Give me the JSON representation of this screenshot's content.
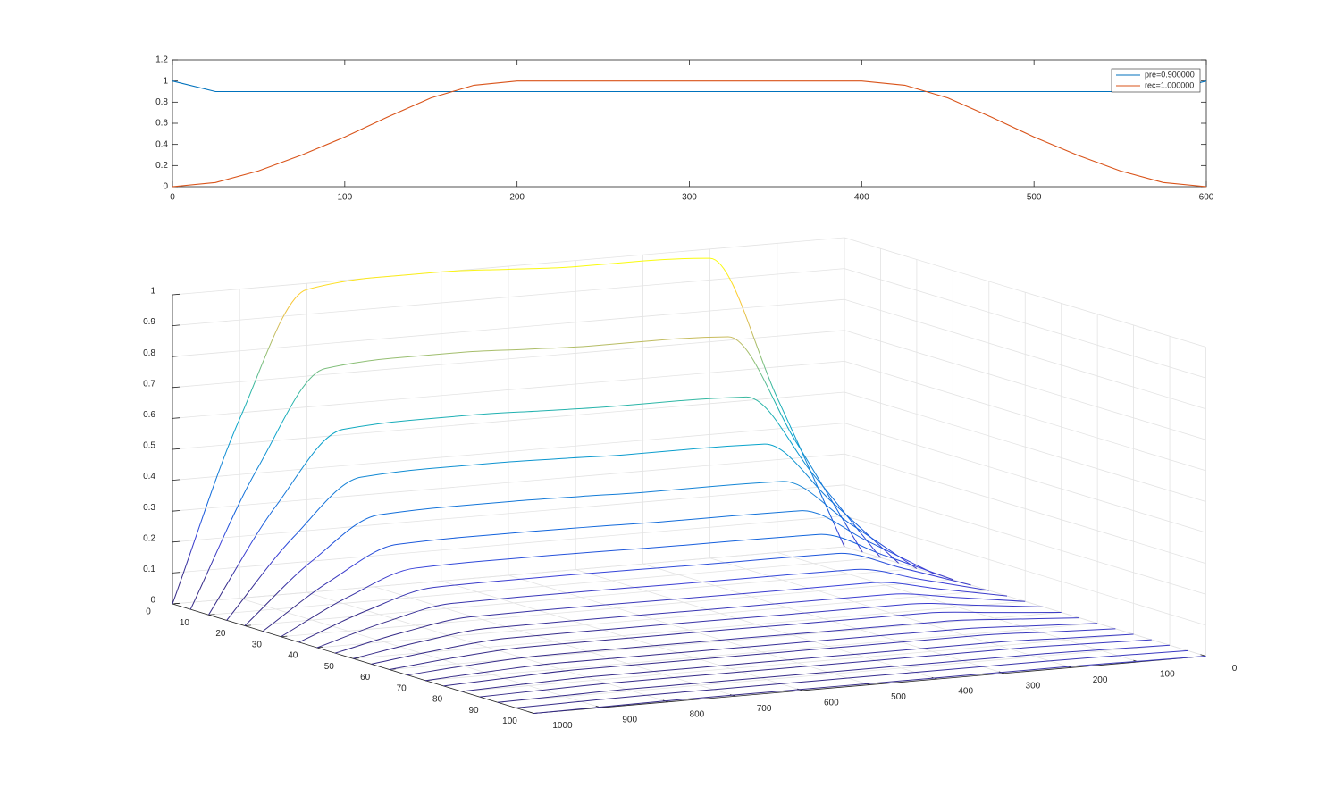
{
  "chart_data": [
    {
      "type": "line",
      "x": [
        0,
        25,
        50,
        75,
        100,
        125,
        150,
        175,
        200,
        225,
        250,
        275,
        300,
        325,
        350,
        375,
        400,
        425,
        450,
        475,
        500,
        525,
        550,
        575,
        600
      ],
      "series": [
        {
          "name": "pre=0.900000",
          "color": "#0072bd",
          "values": [
            1,
            0.9,
            0.9,
            0.9,
            0.9,
            0.9,
            0.9,
            0.9,
            0.9,
            0.9,
            0.9,
            0.9,
            0.9,
            0.9,
            0.9,
            0.9,
            0.9,
            0.9,
            0.9,
            0.9,
            0.9,
            0.9,
            0.9,
            0.9,
            1
          ]
        },
        {
          "name": "rec=1.000000",
          "color": "#d95319",
          "values": [
            0,
            0.04,
            0.15,
            0.3,
            0.47,
            0.66,
            0.84,
            0.96,
            1,
            1,
            1,
            1,
            1,
            1,
            1,
            1,
            1,
            0.96,
            0.84,
            0.66,
            0.47,
            0.3,
            0.15,
            0.04,
            0
          ]
        }
      ],
      "xlim": [
        0,
        600
      ],
      "xticks": [
        0,
        100,
        200,
        300,
        400,
        500,
        600
      ],
      "ylim": [
        0,
        1.2
      ],
      "yticks": [
        0,
        0.2,
        0.4,
        0.6,
        0.8,
        1,
        1.2
      ],
      "legend": "northeast"
    },
    {
      "type": "waterfall",
      "x": [
        0,
        100,
        200,
        300,
        400,
        500,
        600,
        700,
        800,
        900,
        1000
      ],
      "series": [
        {
          "y": 0,
          "values": [
            0,
            0.5,
            0.97,
            0.98,
            0.98,
            0.99,
            1,
            1,
            0.98,
            0.58,
            0
          ]
        },
        {
          "y": 5,
          "values": [
            0,
            0.379,
            0.734,
            0.742,
            0.742,
            0.749,
            0.757,
            0.757,
            0.742,
            0.439,
            0
          ]
        },
        {
          "y": 10,
          "values": [
            0,
            0.287,
            0.557,
            0.563,
            0.563,
            0.568,
            0.574,
            0.574,
            0.563,
            0.333,
            0
          ]
        },
        {
          "y": 15,
          "values": [
            0,
            0.218,
            0.422,
            0.426,
            0.426,
            0.431,
            0.435,
            0.435,
            0.426,
            0.252,
            0
          ]
        },
        {
          "y": 20,
          "values": [
            0,
            0.165,
            0.319,
            0.322,
            0.322,
            0.326,
            0.329,
            0.329,
            0.322,
            0.191,
            0
          ]
        },
        {
          "y": 25,
          "values": [
            0,
            0.125,
            0.242,
            0.244,
            0.244,
            0.247,
            0.249,
            0.249,
            0.244,
            0.144,
            0
          ]
        },
        {
          "y": 30,
          "values": [
            0,
            0.095,
            0.183,
            0.185,
            0.185,
            0.187,
            0.189,
            0.189,
            0.185,
            0.11,
            0
          ]
        },
        {
          "y": 35,
          "values": [
            0,
            0.072,
            0.139,
            0.14,
            0.14,
            0.142,
            0.143,
            0.143,
            0.14,
            0.083,
            0
          ]
        },
        {
          "y": 40,
          "values": [
            0,
            0.054,
            0.105,
            0.106,
            0.106,
            0.107,
            0.108,
            0.108,
            0.106,
            0.063,
            0
          ]
        },
        {
          "y": 45,
          "values": [
            0,
            0.041,
            0.08,
            0.08,
            0.08,
            0.081,
            0.082,
            0.082,
            0.08,
            0.048,
            0
          ]
        },
        {
          "y": 50,
          "values": [
            0,
            0.031,
            0.06,
            0.061,
            0.061,
            0.061,
            0.062,
            0.062,
            0.061,
            0.036,
            0
          ]
        },
        {
          "y": 55,
          "values": [
            0,
            0.024,
            0.046,
            0.046,
            0.046,
            0.047,
            0.047,
            0.047,
            0.046,
            0.027,
            0
          ]
        },
        {
          "y": 60,
          "values": [
            0,
            0.018,
            0.035,
            0.035,
            0.035,
            0.036,
            0.036,
            0.036,
            0.035,
            0.021,
            0
          ]
        },
        {
          "y": 65,
          "values": [
            0,
            0.014,
            0.026,
            0.026,
            0.026,
            0.027,
            0.027,
            0.027,
            0.026,
            0.016,
            0
          ]
        },
        {
          "y": 70,
          "values": [
            0,
            0.01,
            0.019,
            0.02,
            0.02,
            0.02,
            0.02,
            0.02,
            0.02,
            0.012,
            0
          ]
        },
        {
          "y": 75,
          "values": [
            0,
            0.008,
            0.016,
            0.016,
            0.016,
            0.016,
            0.016,
            0.016,
            0.016,
            0.009,
            0
          ]
        },
        {
          "y": 80,
          "values": [
            0,
            0.006,
            0.012,
            0.012,
            0.012,
            0.012,
            0.012,
            0.012,
            0.012,
            0.007,
            0
          ]
        },
        {
          "y": 85,
          "values": [
            0,
            0.005,
            0.009,
            0.009,
            0.009,
            0.009,
            0.009,
            0.009,
            0.009,
            0.005,
            0
          ]
        },
        {
          "y": 90,
          "values": [
            0,
            0.004,
            0.007,
            0.007,
            0.007,
            0.007,
            0.007,
            0.007,
            0.007,
            0.004,
            0
          ]
        },
        {
          "y": 95,
          "values": [
            0,
            0.003,
            0.005,
            0.005,
            0.005,
            0.005,
            0.005,
            0.005,
            0.005,
            0.003,
            0
          ]
        },
        {
          "y": 100,
          "values": [
            0,
            0.002,
            0.004,
            0.004,
            0.004,
            0.004,
            0.004,
            0.004,
            0.004,
            0.002,
            0
          ]
        }
      ],
      "xlim": [
        0,
        1000
      ],
      "xticks": [
        0,
        100,
        200,
        300,
        400,
        500,
        600,
        700,
        800,
        900,
        1000
      ],
      "ylim": [
        0,
        100
      ],
      "yticks": [
        0,
        10,
        20,
        30,
        40,
        50,
        60,
        70,
        80,
        90,
        100
      ],
      "zlim": [
        0,
        1
      ],
      "zticks": [
        0,
        0.1,
        0.2,
        0.3,
        0.4,
        0.5,
        0.6,
        0.7,
        0.8,
        0.9,
        1
      ],
      "colormap": "parula",
      "grid": true
    }
  ]
}
